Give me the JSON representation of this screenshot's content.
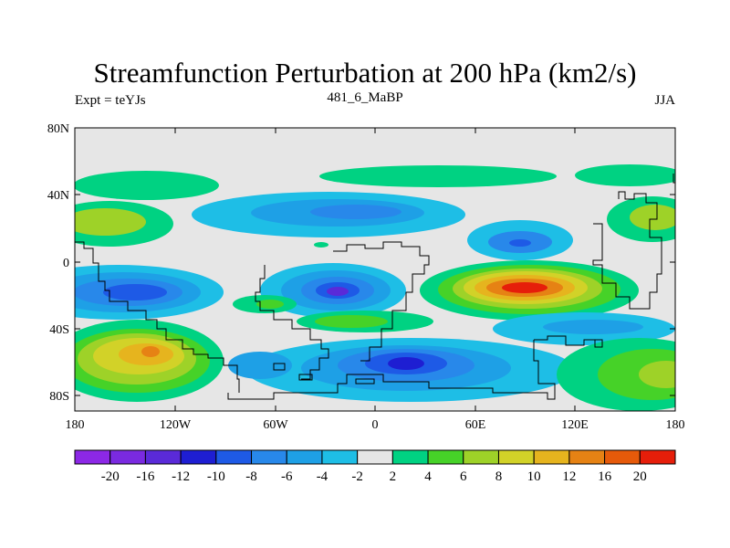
{
  "title": "Streamfunction Perturbation at 200 hPa (km2/s)",
  "subtitles": {
    "left": "Expt = teYJs",
    "center": "481_6_MaBP",
    "right": "JJA"
  },
  "axes": {
    "lat_labels": [
      "80N",
      "40N",
      "0",
      "40S",
      "80S"
    ],
    "lon_labels": [
      "180",
      "120W",
      "60W",
      "0",
      "60E",
      "120E",
      "180"
    ]
  },
  "colorbar": {
    "labels": [
      "-20",
      "-16",
      "-12",
      "-10",
      "-8",
      "-6",
      "-4",
      "-2",
      "2",
      "4",
      "6",
      "8",
      "10",
      "12",
      "16",
      "20"
    ],
    "colors": [
      "#8c28e6",
      "#7a2ae0",
      "#5a2ad8",
      "#1e1ed2",
      "#1e5ae6",
      "#2888ea",
      "#1ea0e6",
      "#1ebee6",
      "#e6e6e6",
      "#00d282",
      "#46d228",
      "#9ed228",
      "#d2d228",
      "#e6b41e",
      "#e68214",
      "#e65a0a",
      "#e61e0a"
    ]
  },
  "palette": {
    "background": "#e6e6e6",
    "coast": "#000000"
  }
}
